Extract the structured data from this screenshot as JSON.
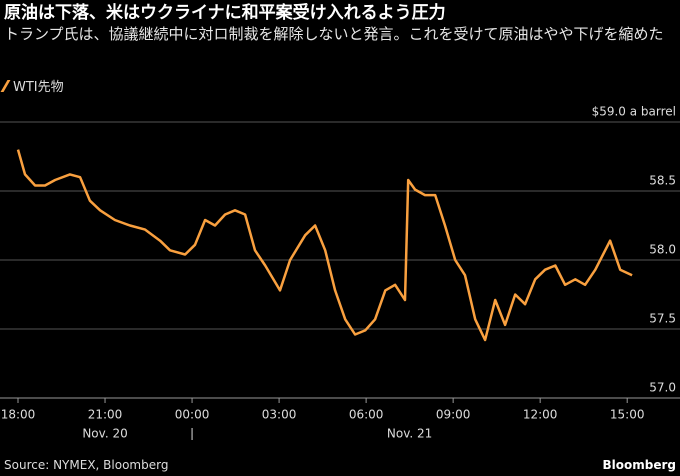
{
  "chart_data": {
    "type": "line",
    "title": "原油は下落、米はウクライナに和平案受け入れるよう圧力",
    "subtitle": "トランプ氏は、協議継続中に対ロ制裁を解除しないと発言。これを受けて原油はやや下げを縮めた",
    "source": "Source: NYMEX, Bloomberg",
    "brand": "Bloomberg",
    "xlim": [
      0,
      21.2
    ],
    "xticks": [
      {
        "value": 0,
        "label": "18:00"
      },
      {
        "value": 3,
        "label": "21:00"
      },
      {
        "value": 6,
        "label": "00:00"
      },
      {
        "value": 9,
        "label": "03:00"
      },
      {
        "value": 12,
        "label": "06:00"
      },
      {
        "value": 15,
        "label": "09:00"
      },
      {
        "value": 18,
        "label": "12:00"
      },
      {
        "value": 21,
        "label": "15:00"
      }
    ],
    "date_labels": [
      {
        "value": 3,
        "label": "Nov. 20"
      },
      {
        "value": 13.5,
        "label": "Nov. 21"
      }
    ],
    "date_separators": [
      6
    ],
    "ylim": [
      57,
      59
    ],
    "yticks": [
      {
        "value": 57,
        "label": "57.0"
      },
      {
        "value": 57.5,
        "label": "57.5"
      },
      {
        "value": 58,
        "label": "58.0"
      },
      {
        "value": 58.5,
        "label": "58.5"
      },
      {
        "value": 59,
        "label": "$59.0 a barrel"
      }
    ],
    "grid": true,
    "series": [
      {
        "name": "WTI先物",
        "color": "#f9a03f",
        "x": [
          0,
          0.24,
          0.59,
          0.93,
          1.28,
          1.79,
          2.14,
          2.48,
          2.83,
          3.34,
          3.86,
          4.38,
          4.9,
          5.24,
          5.76,
          6.1,
          6.45,
          6.79,
          7.14,
          7.48,
          7.83,
          8.17,
          8.52,
          9.03,
          9.38,
          9.9,
          10.24,
          10.59,
          10.93,
          11.28,
          11.62,
          11.97,
          12.31,
          12.66,
          13,
          13.34,
          13.45,
          13.69,
          14.03,
          14.38,
          14.72,
          15.07,
          15.41,
          15.76,
          16.1,
          16.45,
          16.79,
          17.14,
          17.48,
          17.83,
          18.17,
          18.52,
          18.86,
          19.21,
          19.55,
          19.9,
          20.24,
          20.41,
          20.76,
          21.17
        ],
        "values": [
          58.8,
          58.62,
          58.54,
          58.54,
          58.58,
          58.62,
          58.6,
          58.43,
          58.36,
          58.29,
          58.25,
          58.22,
          58.14,
          58.07,
          58.04,
          58.11,
          58.29,
          58.25,
          58.33,
          58.36,
          58.33,
          58.07,
          57.96,
          57.78,
          58.0,
          58.18,
          58.25,
          58.07,
          57.78,
          57.57,
          57.46,
          57.49,
          57.57,
          57.78,
          57.82,
          57.71,
          58.58,
          58.51,
          58.47,
          58.47,
          58.25,
          58.0,
          57.89,
          57.57,
          57.42,
          57.71,
          57.53,
          57.75,
          57.68,
          57.86,
          57.93,
          57.96,
          57.82,
          57.86,
          57.82,
          57.93,
          58.07,
          58.14,
          57.93,
          57.89
        ]
      }
    ]
  }
}
